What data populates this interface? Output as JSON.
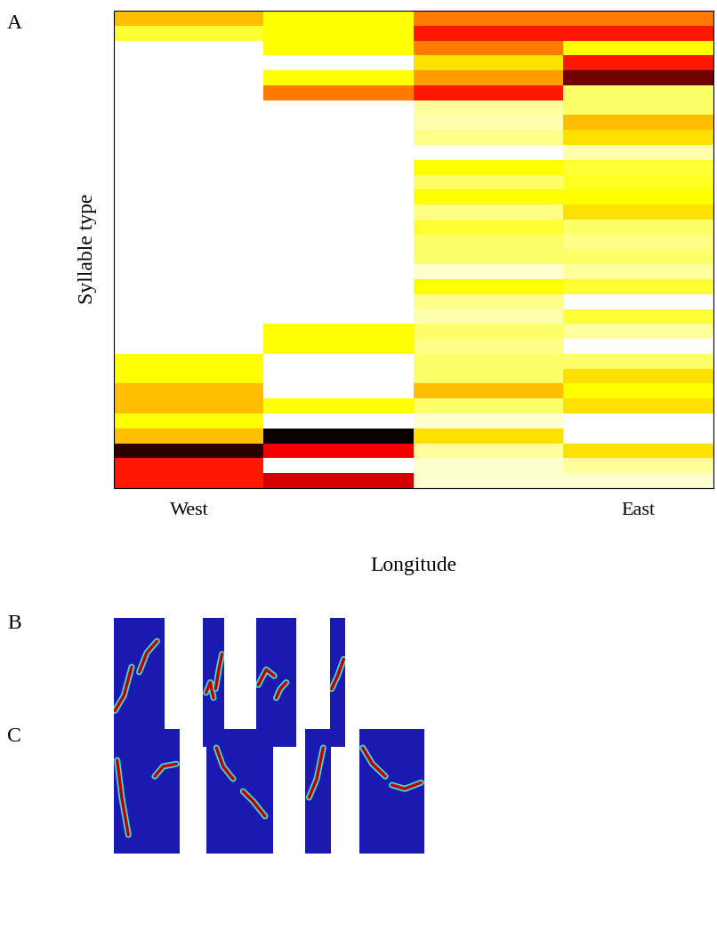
{
  "chart_data": {
    "type": "heatmap",
    "x_label": "Longitude",
    "y_label": "Syllable type",
    "categories": [
      "West",
      null,
      null,
      "East"
    ],
    "tick_labels": "x",
    "cells": [
      [
        0.35,
        0.25,
        0.45,
        0.45
      ],
      [
        0.2,
        0.25,
        0.6,
        0.6
      ],
      [
        0,
        0.25,
        0.45,
        0.25
      ],
      [
        0,
        0,
        0.3,
        0.6
      ],
      [
        0,
        0.25,
        0.4,
        0.85
      ],
      [
        0,
        0.45,
        0.6,
        0.15
      ],
      [
        0,
        0,
        0.1,
        0.15
      ],
      [
        0,
        0,
        0.08,
        0.35
      ],
      [
        0,
        0,
        0.12,
        0.3
      ],
      [
        0,
        0,
        0,
        0.08
      ],
      [
        0,
        0,
        0.25,
        0.2
      ],
      [
        0,
        0,
        0.15,
        0.22
      ],
      [
        0,
        0,
        0.25,
        0.25
      ],
      [
        0,
        0,
        0.12,
        0.3
      ],
      [
        0,
        0,
        0.2,
        0.15
      ],
      [
        0,
        0,
        0.15,
        0.12
      ],
      [
        0,
        0,
        0.15,
        0.15
      ],
      [
        0,
        0,
        0.05,
        0.1
      ],
      [
        0,
        0,
        0.25,
        0.2
      ],
      [
        0,
        0,
        0.12,
        0
      ],
      [
        0,
        0,
        0.08,
        0.2
      ],
      [
        0,
        0.25,
        0.15,
        0.1
      ],
      [
        0,
        0.25,
        0.12,
        0
      ],
      [
        0.25,
        0,
        0.15,
        0.15
      ],
      [
        0.25,
        0,
        0.15,
        0.3
      ],
      [
        0.35,
        0,
        0.35,
        0.25
      ],
      [
        0.35,
        0.25,
        0.15,
        0.3
      ],
      [
        0.25,
        0,
        0.05,
        0
      ],
      [
        0.35,
        1.0,
        0.3,
        0
      ],
      [
        0.95,
        0.65,
        0.1,
        0.3
      ],
      [
        0.6,
        0,
        0.05,
        0.1
      ],
      [
        0.6,
        0.7,
        0.05,
        0.05
      ]
    ]
  },
  "panel_labels": [
    "A",
    "B",
    "C"
  ]
}
